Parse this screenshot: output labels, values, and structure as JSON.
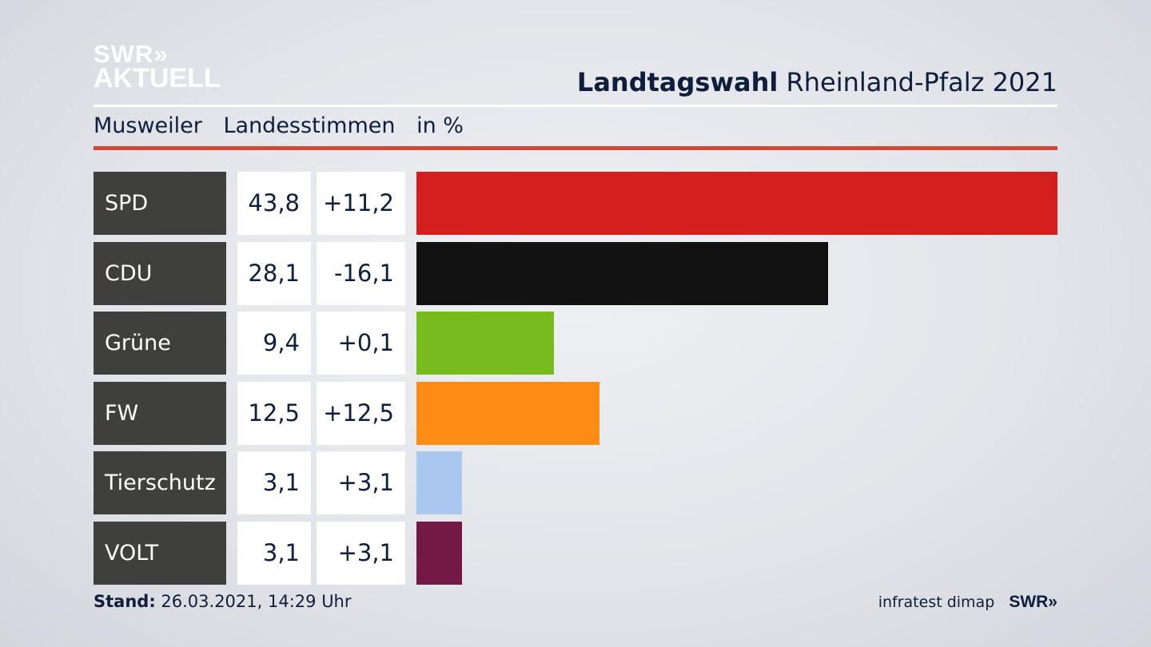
{
  "logo": {
    "line1": "SWR",
    "arrows": "»",
    "line2": "AKTUELL"
  },
  "header": {
    "title_bold": "Landtagswahl",
    "title_rest": "Rheinland-Pfalz 2021"
  },
  "subheader": {
    "place": "Musweiler",
    "metric": "Landesstimmen",
    "unit": "in %"
  },
  "footer": {
    "stand_label": "Stand:",
    "stand_value": "26.03.2021, 14:29 Uhr",
    "source": "infratest dimap",
    "brand": "SWR»"
  },
  "colors": {
    "accent_rule": "#cf4a36",
    "party_box": "#3f3f3d"
  },
  "chart_data": {
    "type": "bar",
    "orientation": "horizontal",
    "categories": [
      "SPD",
      "CDU",
      "Grüne",
      "FW",
      "Tierschutz",
      "VOLT"
    ],
    "values": [
      43.8,
      28.1,
      9.4,
      12.5,
      3.1,
      3.1
    ],
    "value_labels": [
      "43,8",
      "28,1",
      "9,4",
      "12,5",
      "3,1",
      "3,1"
    ],
    "changes": [
      "+11,2",
      "-16,1",
      "+0,1",
      "+12,5",
      "+3,1",
      "+3,1"
    ],
    "bar_colors": [
      "#d41f1f",
      "#121212",
      "#78bb1c",
      "#ff8c16",
      "#a9c7ef",
      "#741945"
    ],
    "xlim": [
      0,
      43.8
    ],
    "grid": false,
    "legend": "none"
  }
}
